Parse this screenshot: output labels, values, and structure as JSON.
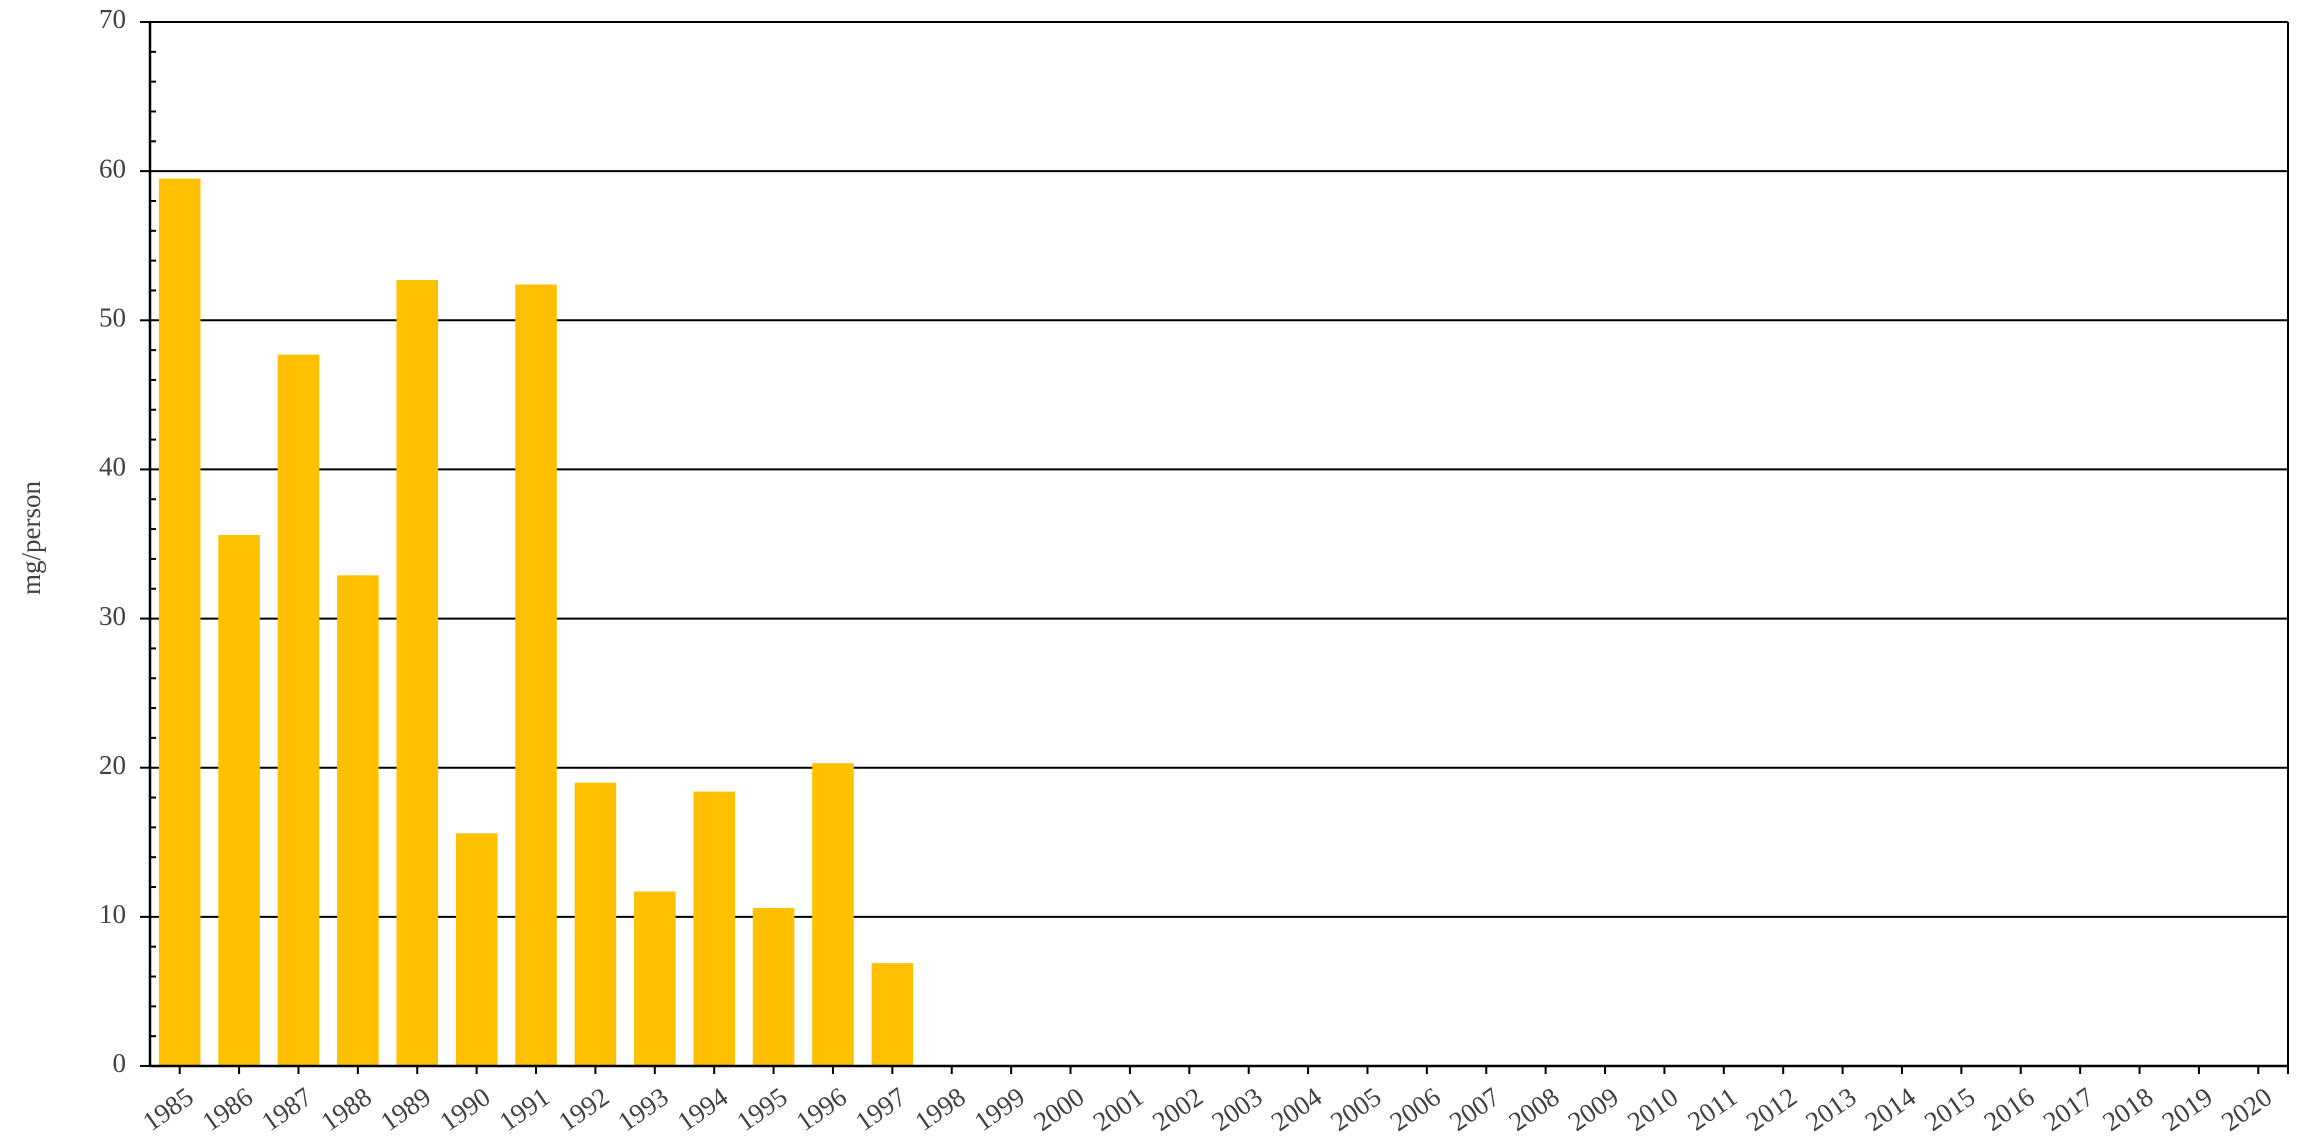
{
  "chart_data": {
    "type": "bar",
    "title": "",
    "xlabel": "",
    "ylabel": "mg/person",
    "ylim": [
      0,
      70
    ],
    "yticks": [
      0,
      10,
      20,
      30,
      40,
      50,
      60,
      70
    ],
    "grid": true,
    "legend": "none",
    "bar_color": "#FFC000",
    "categories": [
      "1985",
      "1986",
      "1987",
      "1988",
      "1989",
      "1990",
      "1991",
      "1992",
      "1993",
      "1994",
      "1995",
      "1996",
      "1997",
      "1998",
      "1999",
      "2000",
      "2001",
      "2002",
      "2003",
      "2004",
      "2005",
      "2006",
      "2007",
      "2008",
      "2009",
      "2010",
      "2011",
      "2012",
      "2013",
      "2014",
      "2015",
      "2016",
      "2017",
      "2018",
      "2019",
      "2020"
    ],
    "values": [
      59.5,
      35.6,
      47.7,
      32.9,
      52.7,
      15.6,
      52.4,
      19.0,
      11.7,
      18.4,
      10.6,
      20.3,
      6.9,
      null,
      null,
      null,
      null,
      null,
      null,
      null,
      null,
      null,
      null,
      null,
      null,
      null,
      null,
      null,
      null,
      null,
      null,
      null,
      null,
      null,
      null,
      null
    ]
  }
}
